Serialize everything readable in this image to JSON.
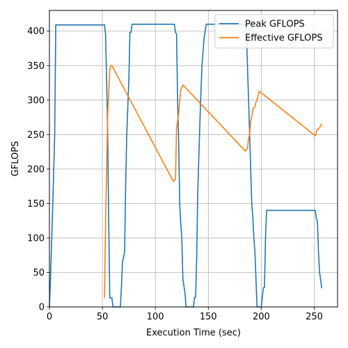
{
  "chart_data": {
    "type": "line",
    "title": "",
    "xlabel": "Execution Time (sec)",
    "ylabel": "GFLOPS",
    "xlim": [
      0,
      272
    ],
    "ylim": [
      0,
      430
    ],
    "xticks": [
      0,
      50,
      100,
      150,
      200,
      250
    ],
    "yticks": [
      0,
      50,
      100,
      150,
      200,
      250,
      300,
      350,
      400
    ],
    "grid": true,
    "legend_position": "top-right",
    "series": [
      {
        "name": "Peak GFLOPS",
        "color": "#1f77b4",
        "points": [
          [
            0,
            0
          ],
          [
            1,
            40
          ],
          [
            3,
            140
          ],
          [
            5,
            250
          ],
          [
            6,
            409
          ],
          [
            52,
            409
          ],
          [
            53,
            395
          ],
          [
            54,
            330
          ],
          [
            55,
            250
          ],
          [
            56,
            120
          ],
          [
            57,
            13
          ],
          [
            59,
            13
          ],
          [
            60,
            0
          ],
          [
            67,
            0
          ],
          [
            68,
            30
          ],
          [
            69,
            65
          ],
          [
            71,
            80
          ],
          [
            72,
            180
          ],
          [
            73,
            250
          ],
          [
            75,
            330
          ],
          [
            76,
            398
          ],
          [
            77,
            398
          ],
          [
            78,
            410
          ],
          [
            118,
            410
          ],
          [
            119,
            398
          ],
          [
            120,
            396
          ],
          [
            121,
            300
          ],
          [
            122,
            240
          ],
          [
            123,
            150
          ],
          [
            124,
            120
          ],
          [
            125,
            100
          ],
          [
            126,
            40
          ],
          [
            128,
            20
          ],
          [
            129,
            0
          ],
          [
            136,
            0
          ],
          [
            137,
            14
          ],
          [
            138,
            14
          ],
          [
            139,
            70
          ],
          [
            140,
            165
          ],
          [
            142,
            265
          ],
          [
            143,
            310
          ],
          [
            144,
            350
          ],
          [
            146,
            390
          ],
          [
            148,
            410
          ],
          [
            185,
            410
          ],
          [
            186,
            395
          ],
          [
            188,
            300
          ],
          [
            190,
            200
          ],
          [
            191,
            150
          ],
          [
            192,
            130
          ],
          [
            193,
            100
          ],
          [
            194,
            80
          ],
          [
            195,
            40
          ],
          [
            196,
            0
          ],
          [
            200,
            0
          ],
          [
            202,
            28
          ],
          [
            203,
            28
          ],
          [
            204,
            100
          ],
          [
            205,
            140
          ],
          [
            251,
            140
          ],
          [
            252,
            127
          ],
          [
            253,
            125
          ],
          [
            254,
            80
          ],
          [
            255,
            50
          ],
          [
            256,
            40
          ],
          [
            257,
            27
          ]
        ]
      },
      {
        "name": "Effective GFLOPS",
        "color": "#ff7f0e",
        "points": [
          [
            52,
            13
          ],
          [
            53,
            120
          ],
          [
            54,
            200
          ],
          [
            55,
            280
          ],
          [
            56,
            310
          ],
          [
            57,
            345
          ],
          [
            58,
            350
          ],
          [
            59,
            350
          ],
          [
            117,
            182
          ],
          [
            119,
            185
          ],
          [
            120,
            260
          ],
          [
            121,
            270
          ],
          [
            122,
            280
          ],
          [
            123,
            300
          ],
          [
            124,
            315
          ],
          [
            126,
            322
          ],
          [
            185,
            226
          ],
          [
            187,
            230
          ],
          [
            188,
            245
          ],
          [
            189,
            250
          ],
          [
            190,
            270
          ],
          [
            191,
            275
          ],
          [
            192,
            287
          ],
          [
            193,
            289
          ],
          [
            194,
            290
          ],
          [
            195,
            297
          ],
          [
            196,
            300
          ],
          [
            198,
            313
          ],
          [
            251,
            248
          ],
          [
            253,
            258
          ],
          [
            254,
            258
          ],
          [
            256,
            262
          ],
          [
            257,
            266
          ]
        ]
      }
    ]
  }
}
